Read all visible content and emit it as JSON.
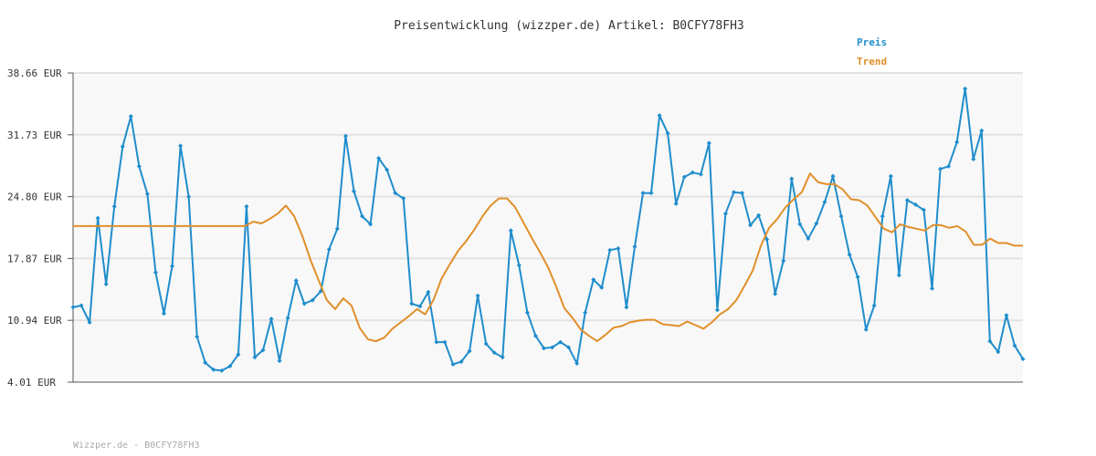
{
  "colors": {
    "price": "#1f8dcc",
    "trend": "#e08f2a",
    "grid": "#e2e2e2",
    "plot_bg": "#f8f8f8",
    "axis": "#555555"
  },
  "footer": "Wizzper.de - B0CFY78FH3",
  "chart_data": {
    "type": "line",
    "title": "Preisentwicklung (wizzper.de) Artikel: B0CFY78FH3",
    "xlabel": "",
    "ylabel": "",
    "ylim": [
      4.01,
      38.66
    ],
    "y_ticks": [
      4.01,
      10.94,
      17.87,
      24.8,
      31.73,
      38.66
    ],
    "y_tick_labels": [
      "4.01 EUR",
      "10.94 EUR",
      "17.87 EUR",
      "24.80 EUR",
      "31.73 EUR",
      "38.66 EUR"
    ],
    "grid": true,
    "legend_position": "top-right",
    "series": [
      {
        "name": "Preis",
        "values": [
          12.4,
          12.6,
          10.7,
          22.4,
          15.0,
          23.7,
          30.4,
          33.8,
          28.2,
          25.1,
          16.3,
          11.7,
          17.0,
          30.5,
          24.8,
          9.1,
          6.2,
          5.4,
          5.3,
          5.8,
          7.1,
          23.7,
          6.8,
          7.6,
          11.1,
          6.4,
          11.2,
          15.4,
          12.8,
          13.2,
          14.2,
          18.9,
          21.2,
          31.6,
          25.4,
          22.6,
          21.7,
          29.1,
          27.8,
          25.2,
          24.6,
          12.8,
          12.5,
          14.1,
          8.5,
          8.5,
          6.0,
          6.3,
          7.5,
          13.7,
          8.3,
          7.3,
          6.8,
          21.0,
          17.1,
          11.8,
          9.2,
          7.8,
          7.9,
          8.5,
          7.9,
          6.1,
          11.8,
          15.5,
          14.6,
          18.8,
          19.0,
          12.4,
          19.2,
          25.2,
          25.2,
          33.9,
          31.9,
          24.0,
          27.0,
          27.5,
          27.3,
          30.8,
          12.1,
          22.9,
          25.3,
          25.2,
          21.6,
          22.7,
          20.0,
          13.9,
          17.6,
          26.8,
          21.7,
          20.1,
          21.8,
          24.2,
          27.1,
          22.6,
          18.3,
          15.8,
          9.9,
          12.6,
          22.6,
          27.1,
          16.0,
          24.4,
          23.9,
          23.3,
          14.5,
          27.9,
          28.2,
          30.9,
          36.9,
          29.0,
          32.2,
          8.6,
          7.4,
          11.5,
          8.1,
          6.6
        ],
        "color": "#1f8dcc"
      },
      {
        "name": "Trend",
        "values": [
          21.5,
          21.5,
          21.5,
          21.5,
          21.5,
          21.5,
          21.5,
          21.5,
          21.5,
          21.5,
          21.5,
          21.5,
          21.5,
          21.5,
          21.5,
          21.5,
          21.5,
          21.5,
          21.5,
          21.5,
          21.5,
          21.5,
          22.0,
          21.8,
          22.3,
          22.9,
          23.8,
          22.6,
          20.4,
          17.7,
          15.4,
          13.2,
          12.2,
          13.4,
          12.6,
          10.1,
          8.8,
          8.6,
          9.0,
          10.0,
          10.7,
          11.4,
          12.2,
          11.6,
          13.2,
          15.6,
          17.2,
          18.7,
          19.8,
          21.1,
          22.6,
          23.8,
          24.6,
          24.6,
          23.6,
          21.9,
          20.2,
          18.6,
          16.9,
          14.7,
          12.3,
          11.2,
          9.9,
          9.2,
          8.6,
          9.3,
          10.1,
          10.3,
          10.7,
          10.9,
          11.0,
          11.0,
          10.5,
          10.4,
          10.3,
          10.8,
          10.4,
          10.0,
          10.7,
          11.6,
          12.2,
          13.2,
          14.8,
          16.5,
          19.3,
          21.3,
          22.3,
          23.6,
          24.5,
          25.3,
          27.4,
          26.4,
          26.2,
          26.2,
          25.6,
          24.5,
          24.4,
          23.8,
          22.5,
          21.2,
          20.8,
          21.7,
          21.4,
          21.2,
          21.0,
          21.6,
          21.6,
          21.3,
          21.5,
          20.9,
          19.4,
          19.4,
          20.1,
          19.6,
          19.6,
          19.3,
          19.3
        ],
        "color": "#e08f2a"
      }
    ]
  }
}
